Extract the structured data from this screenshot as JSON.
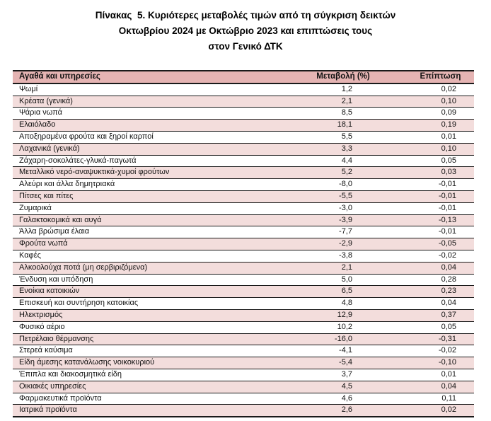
{
  "title": {
    "line1": "Πίνακας  5. Κυριότερες μεταβολές τιμών από τη σύγκριση δεικτών",
    "line2": "Οκτωβρίου 2024 με Οκτώβριο 2023 και επιπτώσεις τους",
    "line3": "στον Γενικό ΔΤΚ"
  },
  "table": {
    "headers": [
      "Αγαθά και υπηρεσίες",
      "Μεταβολή (%)",
      "Επίπτωση"
    ],
    "rows": [
      {
        "label": "Ψωμί",
        "change": "1,2",
        "impact": "0,02"
      },
      {
        "label": "Κρέατα (γενικά)",
        "change": "2,1",
        "impact": "0,10"
      },
      {
        "label": "Ψάρια νωπά",
        "change": "8,5",
        "impact": "0,09"
      },
      {
        "label": "Ελαιόλαδο",
        "change": "18,1",
        "impact": "0,19"
      },
      {
        "label": "Αποξηραμένα φρούτα και ξηροί καρποί",
        "change": "5,5",
        "impact": "0,01"
      },
      {
        "label": "Λαχανικά (γενικά)",
        "change": "3,3",
        "impact": "0,10"
      },
      {
        "label": "Ζάχαρη-σοκολάτες-γλυκά-παγωτά",
        "change": "4,4",
        "impact": "0,05"
      },
      {
        "label": "Μεταλλικό νερό-αναψυκτικά-χυμοί φρούτων",
        "change": "5,2",
        "impact": "0,03"
      },
      {
        "label": "Αλεύρι και άλλα δημητριακά",
        "change": "-8,0",
        "impact": "-0,01"
      },
      {
        "label": "Πίτσες και πίτες",
        "change": "-5,5",
        "impact": "-0,01"
      },
      {
        "label": "Ζυμαρικά",
        "change": "-3,0",
        "impact": "-0,01"
      },
      {
        "label": "Γαλακτοκομικά και αυγά",
        "change": "-3,9",
        "impact": "-0,13"
      },
      {
        "label": "Άλλα βρώσιμα έλαια",
        "change": "-7,7",
        "impact": "-0,01"
      },
      {
        "label": "Φρούτα νωπά",
        "change": "-2,9",
        "impact": "-0,05"
      },
      {
        "label": "Καφές",
        "change": "-3,8",
        "impact": "-0,02"
      },
      {
        "label": "Αλκοολούχα ποτά (μη σερβιριζόμενα)",
        "change": "2,1",
        "impact": "0,04"
      },
      {
        "label": "Ένδυση και υπόδηση",
        "change": "5,0",
        "impact": "0,28"
      },
      {
        "label": "Ενοίκια κατοικιών",
        "change": "6,5",
        "impact": "0,23"
      },
      {
        "label": "Επισκευή και συντήρηση κατοικίας",
        "change": "4,8",
        "impact": "0,04"
      },
      {
        "label": "Ηλεκτρισμός",
        "change": "12,9",
        "impact": "0,37"
      },
      {
        "label": "Φυσικό αέριο",
        "change": "10,2",
        "impact": "0,05"
      },
      {
        "label": "Πετρέλαιο θέρμανσης",
        "change": "-16,0",
        "impact": "-0,31"
      },
      {
        "label": "Στερεά καύσιμα",
        "change": "-4,1",
        "impact": "-0,02"
      },
      {
        "label": "Είδη άμεσης κατανάλωσης νοικοκυριού",
        "change": "-5,4",
        "impact": "-0,10"
      },
      {
        "label": "Έπιπλα και διακοσμητικά είδη",
        "change": "3,7",
        "impact": "0,01"
      },
      {
        "label": "Οικιακές υπηρεσίες",
        "change": "4,5",
        "impact": "0,04"
      },
      {
        "label": "Φαρμακευτικά προϊόντα",
        "change": "4,6",
        "impact": "0,11"
      },
      {
        "label": "Ιατρικά προϊόντα",
        "change": "2,6",
        "impact": "0,02"
      }
    ]
  },
  "colors": {
    "header_bg": "#e5b4b3",
    "stripe_bg": "#f3dddc",
    "border": "#1a1a1a",
    "text": "#111111"
  }
}
